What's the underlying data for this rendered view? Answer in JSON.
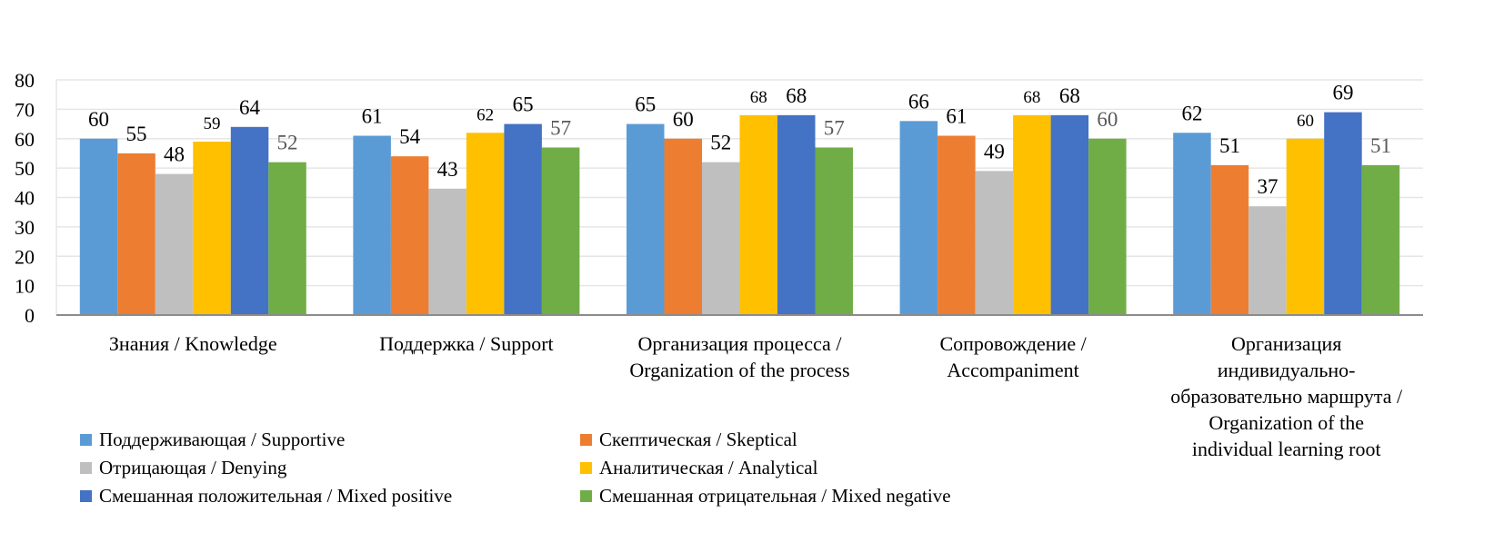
{
  "chart_data": {
    "type": "bar",
    "title": "",
    "xlabel": "",
    "ylabel": "",
    "ylim": [
      0,
      80
    ],
    "yticks": [
      0,
      10,
      20,
      30,
      40,
      50,
      60,
      70,
      80
    ],
    "grid": true,
    "legend_position": "bottom",
    "categories": [
      "Знания / Knowledge",
      "Поддержка / Support",
      "Организация процесса / Organization of the process",
      "Сопровождение / Accompaniment",
      "Организация индивидуально-образовательно маршрута / Organization of the individual learning root"
    ],
    "category_lines": [
      [
        "Знания / Knowledge"
      ],
      [
        "Поддержка / Support"
      ],
      [
        "Организация процесса /",
        "Organization of the process"
      ],
      [
        "Сопровождение /",
        "Accompaniment"
      ],
      [
        "Организация",
        "индивидуально-",
        "образовательно маршрута /",
        "Organization of the",
        "individual learning root"
      ]
    ],
    "series": [
      {
        "name": "Поддерживающая / Supportive",
        "color": "#5B9BD5",
        "values": [
          60,
          61,
          65,
          66,
          62
        ]
      },
      {
        "name": "Скептическая / Skeptical",
        "color": "#ED7D31",
        "values": [
          55,
          54,
          60,
          61,
          51
        ]
      },
      {
        "name": "Отрицающая / Denying",
        "color": "#BFBFBF",
        "values": [
          48,
          43,
          52,
          49,
          37
        ]
      },
      {
        "name": "Аналитическая / Analytical",
        "color": "#FFC000",
        "values": [
          59,
          62,
          68,
          68,
          60
        ]
      },
      {
        "name": "Смешанная положительная / Mixed positive",
        "color": "#4472C4",
        "values": [
          64,
          65,
          68,
          68,
          69
        ]
      },
      {
        "name": "Смешанная отрицательная / Mixed negative",
        "color": "#70AD47",
        "values": [
          52,
          57,
          57,
          60,
          51
        ]
      }
    ]
  }
}
